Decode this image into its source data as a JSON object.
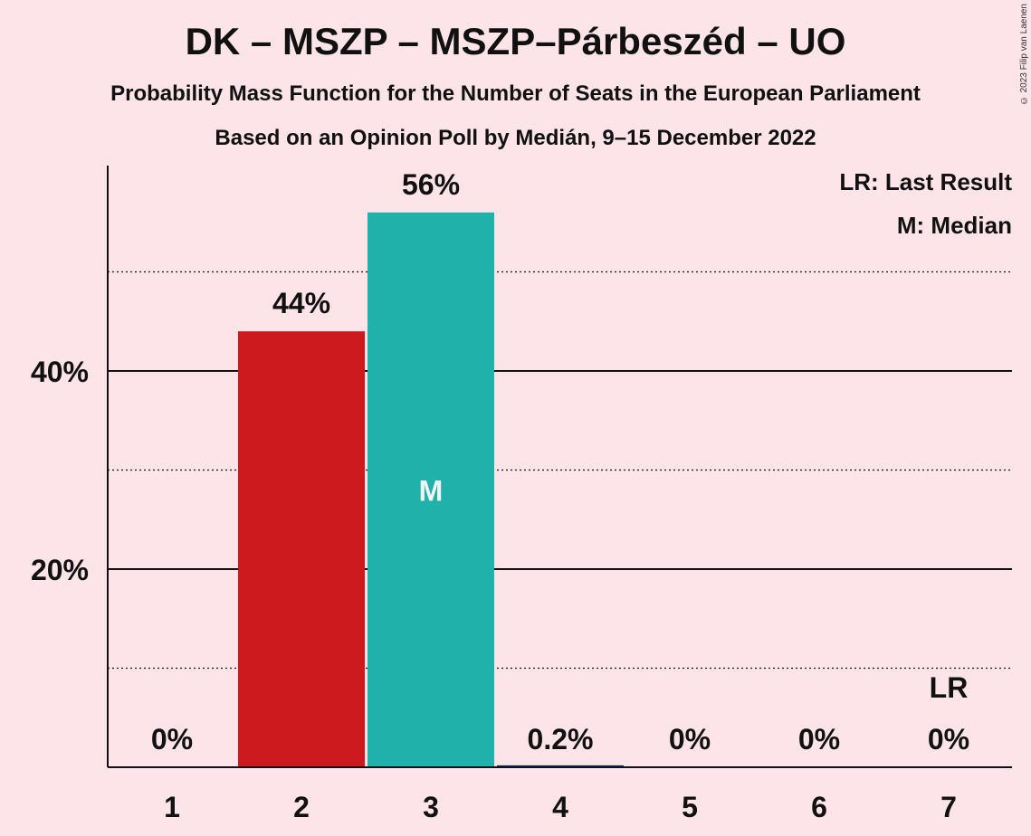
{
  "chart_data": {
    "type": "bar",
    "title": "DK – MSZP – MSZP–Párbeszéd – UO",
    "subtitle": "Probability Mass Function for the Number of Seats in the European Parliament",
    "subtitle2": "Based on an Opinion Poll by Medián, 9–15 December 2022",
    "copyright": "© 2023 Filip van Laenen",
    "categories": [
      "1",
      "2",
      "3",
      "4",
      "5",
      "6",
      "7"
    ],
    "values": [
      0,
      44,
      56,
      0.2,
      0,
      0,
      0
    ],
    "data_labels": [
      "0%",
      "44%",
      "56%",
      "0.2%",
      "0%",
      "0%",
      "0%"
    ],
    "bar_colors": [
      "#cc1a1e",
      "#cc1a1e",
      "#20b2aa",
      "#20b2aa",
      "#20b2aa",
      "#20b2aa",
      "#20b2aa"
    ],
    "ylim": [
      0,
      61
    ],
    "yticks": [
      20,
      40
    ],
    "ytick_labels": [
      "20%",
      "40%"
    ],
    "dotted_gridlines": [
      10,
      30,
      50
    ],
    "median_category": "3",
    "median_label": "M",
    "last_result_category": "7",
    "last_result_label": "LR",
    "legend": [
      "LR: Last Result",
      "M: Median"
    ],
    "legend_position": "top-right"
  }
}
